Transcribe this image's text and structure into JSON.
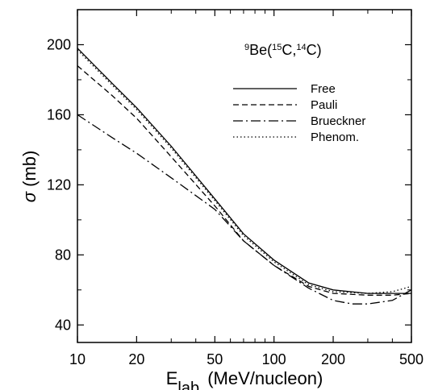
{
  "chart_data": {
    "type": "line",
    "title": "",
    "annotation": {
      "parts": [
        {
          "text": "9",
          "sup": true
        },
        {
          "text": "Be(",
          "sup": false
        },
        {
          "text": "15",
          "sup": true
        },
        {
          "text": "C,",
          "sup": false
        },
        {
          "text": "14",
          "sup": true
        },
        {
          "text": "C)",
          "sup": false
        }
      ]
    },
    "xlabel": {
      "main": "E",
      "subscript": "lab",
      "units": "(MeV/nucleon)"
    },
    "ylabel": {
      "symbol": "σ",
      "units": "(mb)"
    },
    "xscale": "log",
    "xlim": [
      10,
      500
    ],
    "ylim": [
      30,
      220
    ],
    "xticks": [
      10,
      20,
      50,
      100,
      200,
      500
    ],
    "xtick_labels": [
      "10",
      "20",
      "50",
      "100",
      "200",
      "500"
    ],
    "yticks": [
      40,
      80,
      120,
      160,
      200
    ],
    "ytick_labels": [
      "40",
      "80",
      "120",
      "160",
      "200"
    ],
    "grid": false,
    "legend_position": "top-right",
    "series": [
      {
        "name": "Free",
        "line_style": "solid",
        "x": [
          10,
          15,
          20,
          30,
          50,
          70,
          100,
          150,
          200,
          300,
          400,
          500
        ],
        "y": [
          198,
          178,
          164,
          142,
          112,
          92,
          77,
          64,
          60,
          58,
          58,
          58
        ]
      },
      {
        "name": "Pauli",
        "line_style": "dashed",
        "x": [
          10,
          15,
          20,
          30,
          50,
          70,
          100,
          150,
          200,
          300,
          400,
          500
        ],
        "y": [
          188,
          171,
          158,
          136,
          108,
          88,
          74,
          62,
          58,
          57,
          57,
          58
        ]
      },
      {
        "name": "Brueckner",
        "line_style": "dashdot",
        "x": [
          10,
          15,
          20,
          30,
          50,
          70,
          100,
          150,
          200,
          250,
          300,
          400,
          500
        ],
        "y": [
          160,
          147,
          138,
          124,
          106,
          88,
          74,
          61,
          54,
          52,
          52,
          54,
          60
        ]
      },
      {
        "name": "Phenom.",
        "line_style": "dotted",
        "x": [
          10,
          15,
          20,
          30,
          50,
          70,
          100,
          150,
          200,
          300,
          400,
          500
        ],
        "y": [
          197,
          177,
          163,
          141,
          111,
          91,
          76,
          63,
          59,
          58,
          59,
          62
        ]
      }
    ],
    "style": {
      "line_color": "#000000",
      "background": "#ffffff"
    }
  }
}
